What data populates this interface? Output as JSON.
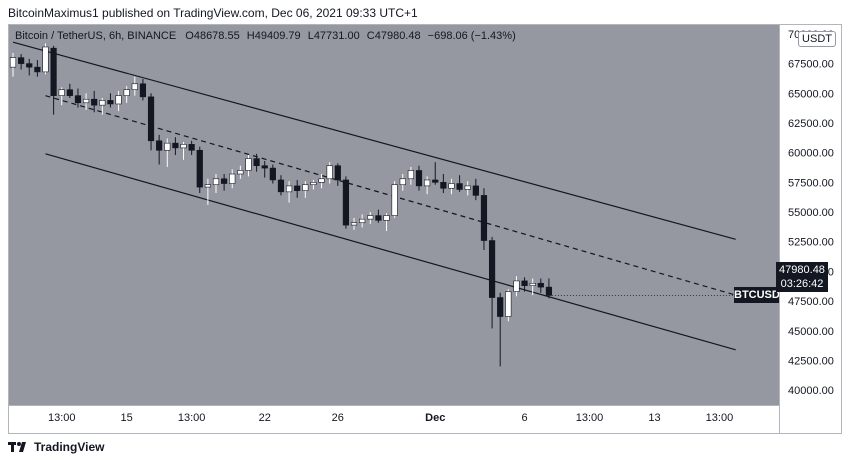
{
  "header": {
    "publisher": "BitcoinMaximus1 published on TradingView.com, Dec 06, 2021 09:33 UTC+1"
  },
  "legend": {
    "symbol": "Bitcoin / TetherUS, 6h, BINANCE",
    "o_label": "O",
    "o_value": "48678.55",
    "h_label": "H",
    "h_value": "49409.79",
    "l_label": "L",
    "l_value": "47731.00",
    "c_label": "C",
    "c_value": "47980.48",
    "change": "−698.06 (−1.43%)"
  },
  "currency_badge": "USDT",
  "last_price": {
    "symbol_tag": "BTCUSDT",
    "price": "47980.48",
    "countdown": "03:26:42"
  },
  "footer": {
    "brand": "TradingView"
  },
  "colors": {
    "background": "#9598a1",
    "candle_up": "#ffffff",
    "candle_down": "#131722",
    "channel_line": "#131722"
  },
  "chart_data": {
    "type": "candlestick",
    "title": "Bitcoin / TetherUS, 6h, BINANCE",
    "ylim": [
      38750,
      70750
    ],
    "y_ticks": [
      40000,
      42500,
      45000,
      47500,
      50000,
      52500,
      55000,
      57500,
      60000,
      62500,
      65000,
      67500,
      70000
    ],
    "y_tick_labels": [
      "40000.00",
      "42500.00",
      "45000.00",
      "47500.00",
      "50000.00",
      "52500.00",
      "55000.00",
      "57500.00",
      "60000.00",
      "62500.00",
      "65000.00",
      "67500.00",
      "70000.00"
    ],
    "x_tick_labels": [
      {
        "label": "13:00",
        "index": 6
      },
      {
        "label": "15",
        "index": 14
      },
      {
        "label": "13:00",
        "index": 22
      },
      {
        "label": "22",
        "index": 31
      },
      {
        "label": "26",
        "index": 40
      },
      {
        "label": "Dec",
        "index": 52
      },
      {
        "label": "6",
        "index": 63
      },
      {
        "label": "13:00",
        "index": 71
      },
      {
        "label": "13",
        "index": 79
      },
      {
        "label": "13:00",
        "index": 87
      }
    ],
    "total_slots": 90,
    "candles": [
      [
        67200,
        68400,
        66400,
        68000
      ],
      [
        68000,
        68300,
        67000,
        67500
      ],
      [
        67500,
        67900,
        66500,
        67200
      ],
      [
        67200,
        67800,
        66400,
        66800
      ],
      [
        66800,
        69200,
        66600,
        68900
      ],
      [
        68800,
        69000,
        63200,
        64800
      ],
      [
        64800,
        65500,
        64000,
        65300
      ],
      [
        65300,
        65800,
        64600,
        64800
      ],
      [
        64800,
        65400,
        63800,
        64200
      ],
      [
        64200,
        65000,
        63600,
        64500
      ],
      [
        64500,
        65200,
        63400,
        64000
      ],
      [
        64000,
        64600,
        63200,
        64400
      ],
      [
        64400,
        65000,
        63800,
        64100
      ],
      [
        64100,
        65200,
        63500,
        64800
      ],
      [
        64800,
        65600,
        64200,
        65300
      ],
      [
        65300,
        66400,
        64800,
        65800
      ],
      [
        65800,
        66200,
        64400,
        64700
      ],
      [
        64700,
        65000,
        60200,
        61000
      ],
      [
        61000,
        61500,
        59000,
        60200
      ],
      [
        60200,
        61200,
        58800,
        60800
      ],
      [
        60800,
        61300,
        59800,
        60400
      ],
      [
        60400,
        60900,
        59400,
        60700
      ],
      [
        60700,
        61000,
        59800,
        60200
      ],
      [
        60200,
        60500,
        56600,
        57100
      ],
      [
        57100,
        57800,
        55600,
        57300
      ],
      [
        57300,
        58200,
        56600,
        57800
      ],
      [
        57800,
        58200,
        56800,
        57400
      ],
      [
        57400,
        58600,
        57000,
        58200
      ],
      [
        58200,
        58900,
        57800,
        58500
      ],
      [
        58500,
        59800,
        58000,
        59500
      ],
      [
        59500,
        59900,
        58400,
        58900
      ],
      [
        58900,
        59300,
        57900,
        58700
      ],
      [
        58700,
        59000,
        57400,
        57700
      ],
      [
        57700,
        58100,
        56400,
        56700
      ],
      [
        56700,
        57600,
        55800,
        57200
      ],
      [
        57200,
        57700,
        56200,
        56800
      ],
      [
        56800,
        57600,
        56200,
        57300
      ],
      [
        57300,
        57700,
        56900,
        57500
      ],
      [
        57500,
        58200,
        57000,
        57800
      ],
      [
        57800,
        59200,
        57400,
        58900
      ],
      [
        58900,
        59100,
        57200,
        57700
      ],
      [
        57700,
        58000,
        53600,
        53900
      ],
      [
        53900,
        54500,
        53500,
        54100
      ],
      [
        54100,
        54800,
        53700,
        54400
      ],
      [
        54400,
        55000,
        54000,
        54700
      ],
      [
        54700,
        55200,
        54100,
        54300
      ],
      [
        54300,
        54900,
        53400,
        54700
      ],
      [
        54700,
        57600,
        54500,
        57300
      ],
      [
        57300,
        58200,
        56800,
        57800
      ],
      [
        57800,
        58800,
        57300,
        58500
      ],
      [
        58500,
        58900,
        56800,
        57200
      ],
      [
        57200,
        58000,
        56500,
        57700
      ],
      [
        57700,
        59200,
        57300,
        57500
      ],
      [
        57500,
        58200,
        56600,
        57000
      ],
      [
        57000,
        57800,
        56500,
        57400
      ],
      [
        57400,
        58100,
        56700,
        56900
      ],
      [
        56900,
        57600,
        56400,
        57200
      ],
      [
        57200,
        57800,
        56000,
        56400
      ],
      [
        56400,
        57000,
        51800,
        52600
      ],
      [
        52600,
        52900,
        45200,
        47800
      ],
      [
        47800,
        48200,
        42000,
        46200
      ],
      [
        46200,
        48500,
        45800,
        48300
      ],
      [
        48300,
        49600,
        47900,
        49200
      ],
      [
        49200,
        49500,
        48300,
        48800
      ],
      [
        48800,
        49400,
        48000,
        49000
      ],
      [
        49000,
        49400,
        48200,
        48678
      ],
      [
        48678,
        49410,
        47731,
        47980
      ]
    ],
    "channel": {
      "upper": {
        "x1": 0,
        "y1": 69300,
        "x2": 89,
        "y2": 52700
      },
      "middle": {
        "x1": 4,
        "y1": 64800,
        "x2": 89,
        "y2": 48000
      },
      "lower": {
        "x1": 4,
        "y1": 59900,
        "x2": 89,
        "y2": 43400
      }
    }
  }
}
